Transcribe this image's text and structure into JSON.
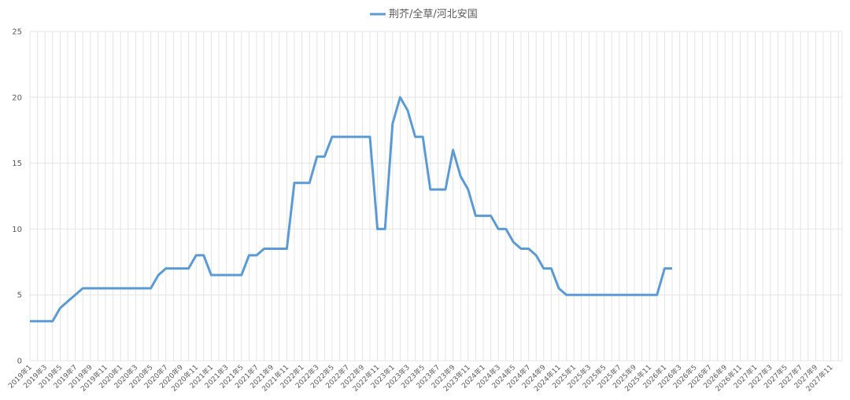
{
  "chart_data": {
    "type": "line",
    "categories": [
      "2019年1",
      null,
      "2019年3",
      null,
      "2019年5",
      null,
      "2019年7",
      null,
      "2019年9",
      null,
      "2019年11",
      null,
      "2020年1",
      null,
      "2020年3",
      null,
      "2020年5",
      null,
      "2020年7",
      null,
      "2020年9",
      null,
      "2020年11",
      null,
      "2021年1",
      null,
      "2021年3",
      null,
      "2021年5",
      null,
      "2021年7",
      null,
      "2021年9",
      null,
      "2021年11",
      null,
      "2022年1",
      null,
      "2022年3",
      null,
      "2022年5",
      null,
      "2022年7",
      null,
      "2022年9",
      null,
      "2022年11",
      null,
      "2023年1",
      null,
      "2023年3",
      null,
      "2023年5",
      null,
      "2023年7",
      null,
      "2023年9",
      null,
      "2023年11",
      null,
      "2024年1",
      null,
      "2024年3",
      null,
      "2024年5",
      null,
      "2024年7",
      null,
      "2024年9",
      null,
      "2024年11",
      null,
      "2025年1",
      null,
      "2025年3",
      null,
      "2025年5",
      null,
      "2025年7",
      null,
      "2025年9",
      null,
      "2025年11",
      null,
      "2026年1",
      null,
      "2026年3",
      null,
      "2026年5",
      null,
      "2026年7",
      null,
      "2026年9",
      null,
      "2026年11",
      null,
      "2027年1",
      null,
      "2027年3",
      null,
      "2027年5",
      null,
      "2027年7",
      null,
      "2027年9",
      null,
      "2027年11",
      null
    ],
    "series": [
      {
        "name": "荆芥/全草/河北安国",
        "color": "#5b9bd5",
        "values": [
          3,
          3,
          3,
          3,
          4,
          4.5,
          5,
          5.5,
          5.5,
          5.5,
          5.5,
          5.5,
          5.5,
          5.5,
          5.5,
          5.5,
          5.5,
          6.5,
          7,
          7,
          7,
          7,
          8,
          8,
          6.5,
          6.5,
          6.5,
          6.5,
          6.5,
          8,
          8,
          8.5,
          8.5,
          8.5,
          8.5,
          13.5,
          13.5,
          13.5,
          15.5,
          15.5,
          17,
          17,
          17,
          17,
          17,
          17,
          10,
          10,
          18,
          20,
          19,
          17,
          17,
          13,
          13,
          13,
          16,
          14,
          13,
          11,
          11,
          11,
          10,
          10,
          9,
          8.5,
          8.5,
          8,
          7,
          7,
          5.5,
          5,
          5,
          5,
          5,
          5,
          5,
          5,
          5,
          5,
          5,
          5,
          5,
          5,
          7,
          7,
          null,
          null,
          null,
          null,
          null,
          null,
          null,
          null,
          null,
          null,
          null,
          null,
          null,
          null,
          null,
          null,
          null,
          null,
          null,
          null,
          null,
          null
        ]
      }
    ],
    "ylim": [
      0,
      25
    ],
    "yticks": [
      0,
      5,
      10,
      15,
      20,
      25
    ],
    "grid": true,
    "legend": "top"
  }
}
